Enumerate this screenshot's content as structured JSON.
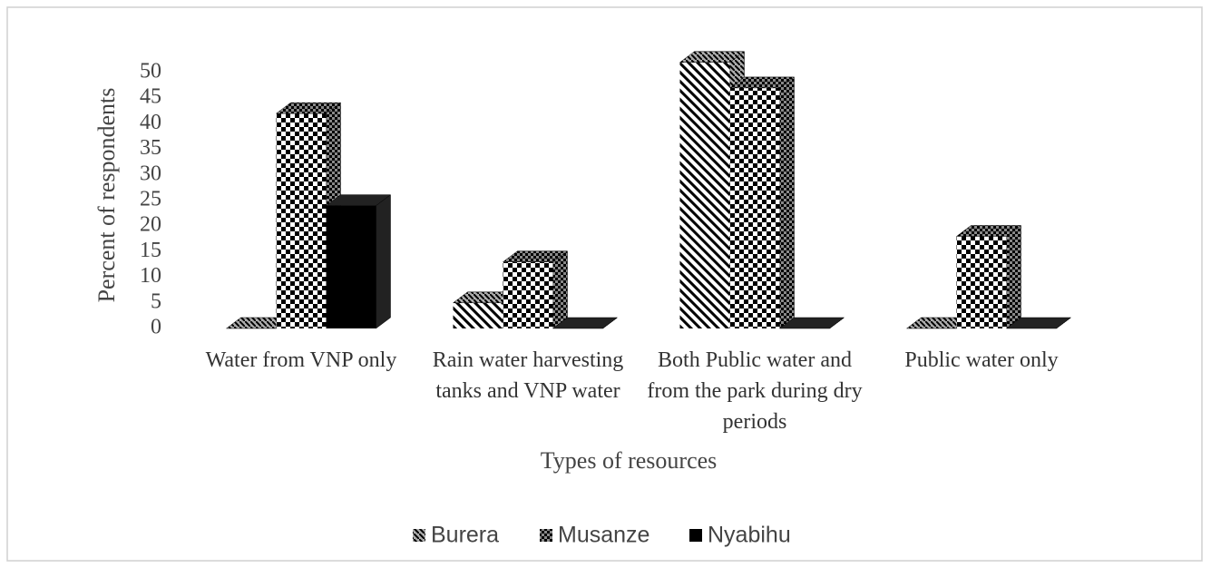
{
  "chart_data": {
    "type": "bar3d",
    "x_label": "Types of resources",
    "y_label": "Percent of respondents",
    "categories": [
      "Water  from VNP only",
      "Rain water harvesting tanks and VNP water",
      "Both Public water and from the park during dry periods",
      "Public water only"
    ],
    "series": [
      {
        "name": "Burera",
        "color": "#000000",
        "pattern": "diagonal",
        "values": [
          0,
          5,
          52,
          0
        ]
      },
      {
        "name": "Musanze",
        "color": "#000000",
        "pattern": "checker",
        "values": [
          42,
          13,
          47,
          18
        ]
      },
      {
        "name": "Nyabihu",
        "color": "#000000",
        "pattern": "solid",
        "values": [
          24,
          0,
          0,
          0
        ]
      }
    ],
    "ylim": [
      0,
      50
    ],
    "yticks": [
      0,
      5,
      10,
      15,
      20,
      25,
      30,
      35,
      40,
      45,
      50
    ],
    "legend": "bottom"
  }
}
